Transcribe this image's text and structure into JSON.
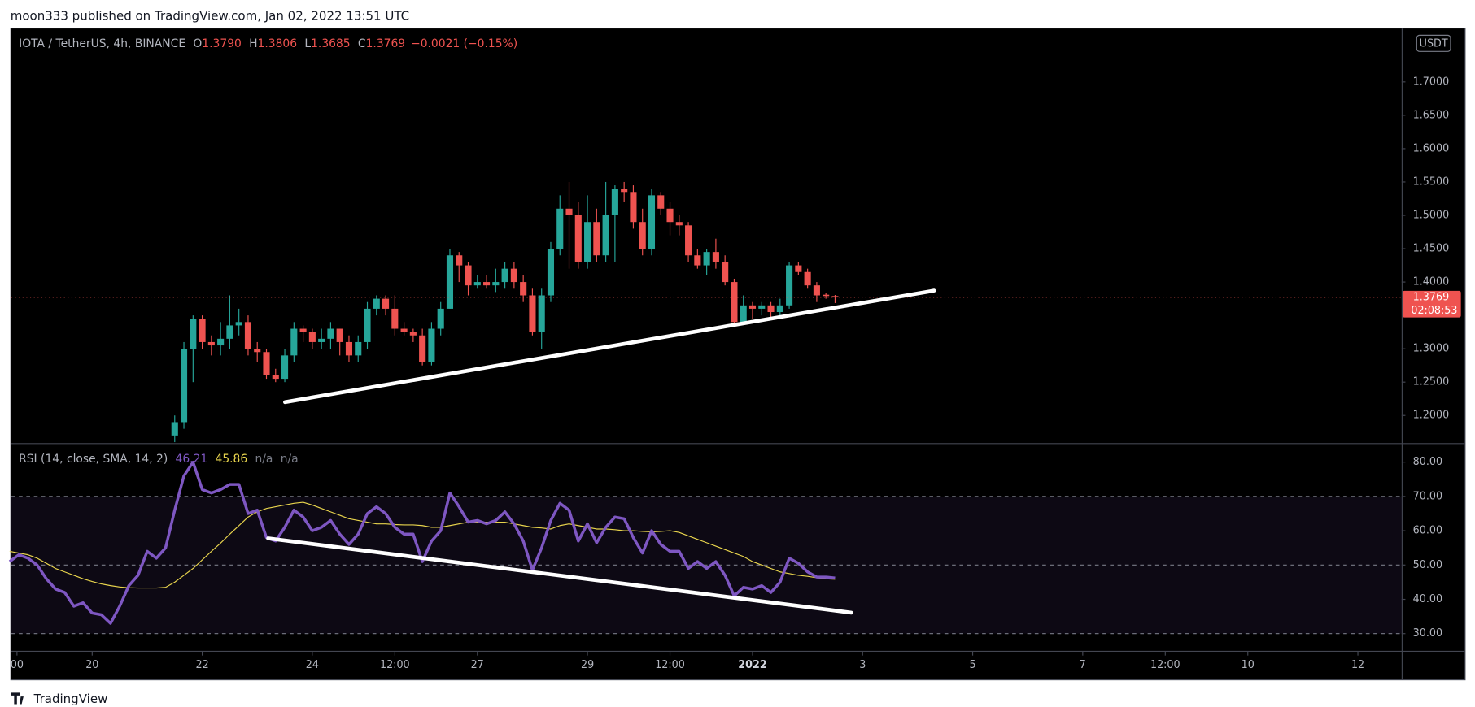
{
  "header": {
    "text": "moon333 published on TradingView.com, Jan 02, 2022 13:51 UTC"
  },
  "footer": {
    "text": "TradingView"
  },
  "chart_data": [
    {
      "type": "candlestick",
      "title": "IOTA / TetherUS, 4h, BINANCE",
      "legend_values": [
        {
          "key": "O",
          "text": "1.3790"
        },
        {
          "key": "H",
          "text": "1.3806"
        },
        {
          "key": "L",
          "text": "1.3685"
        },
        {
          "key": "C",
          "text": "1.3769"
        }
      ],
      "change": "−0.0021 (−0.15%)",
      "currency": "USDT",
      "last_price": {
        "value": 1.3769,
        "label": "1.3769"
      },
      "countdown": "02:08:53",
      "up_color": "#26a69a",
      "down_color": "#ef5350",
      "x": [
        9,
        10,
        11,
        12,
        13,
        14,
        15,
        16,
        17,
        18,
        19,
        20,
        21,
        22,
        23,
        24,
        25,
        26,
        27,
        28,
        29,
        30,
        31,
        32,
        33,
        34,
        35,
        36,
        37,
        38,
        39,
        40,
        41,
        42,
        43,
        44,
        45,
        46,
        47,
        48,
        49,
        50,
        51,
        52,
        53,
        54,
        55,
        56,
        57,
        58,
        59,
        60,
        61,
        62,
        63,
        64,
        65,
        66,
        67,
        68,
        69,
        70,
        71,
        72,
        73,
        74,
        75,
        76,
        77,
        78,
        79,
        80,
        81
      ],
      "open": [
        1.17,
        1.19,
        1.3,
        1.345,
        1.31,
        1.305,
        1.315,
        1.335,
        1.34,
        1.3,
        1.295,
        1.26,
        1.255,
        1.29,
        1.33,
        1.325,
        1.31,
        1.315,
        1.33,
        1.31,
        1.29,
        1.31,
        1.36,
        1.375,
        1.36,
        1.33,
        1.325,
        1.32,
        1.28,
        1.33,
        1.36,
        1.44,
        1.425,
        1.395,
        1.4,
        1.395,
        1.4,
        1.42,
        1.4,
        1.38,
        1.325,
        1.38,
        1.45,
        1.51,
        1.5,
        1.43,
        1.49,
        1.44,
        1.5,
        1.54,
        1.535,
        1.49,
        1.45,
        1.53,
        1.51,
        1.49,
        1.485,
        1.44,
        1.425,
        1.445,
        1.43,
        1.4,
        1.34,
        1.365,
        1.36,
        1.365,
        1.355,
        1.365,
        1.425,
        1.415,
        1.395,
        1.381,
        1.379
      ],
      "high": [
        1.2,
        1.31,
        1.35,
        1.35,
        1.32,
        1.34,
        1.38,
        1.36,
        1.35,
        1.31,
        1.3,
        1.27,
        1.3,
        1.34,
        1.335,
        1.33,
        1.33,
        1.34,
        1.33,
        1.32,
        1.32,
        1.37,
        1.38,
        1.38,
        1.38,
        1.34,
        1.33,
        1.33,
        1.34,
        1.37,
        1.45,
        1.445,
        1.43,
        1.41,
        1.41,
        1.42,
        1.43,
        1.43,
        1.41,
        1.39,
        1.39,
        1.46,
        1.53,
        1.55,
        1.52,
        1.53,
        1.51,
        1.55,
        1.545,
        1.55,
        1.545,
        1.51,
        1.54,
        1.535,
        1.52,
        1.5,
        1.49,
        1.45,
        1.45,
        1.465,
        1.44,
        1.405,
        1.38,
        1.37,
        1.37,
        1.37,
        1.375,
        1.43,
        1.43,
        1.42,
        1.4,
        1.383,
        1.3806
      ],
      "low": [
        1.16,
        1.18,
        1.25,
        1.3,
        1.29,
        1.29,
        1.3,
        1.32,
        1.29,
        1.28,
        1.255,
        1.25,
        1.25,
        1.28,
        1.31,
        1.3,
        1.3,
        1.3,
        1.29,
        1.28,
        1.28,
        1.3,
        1.35,
        1.35,
        1.32,
        1.32,
        1.31,
        1.275,
        1.275,
        1.32,
        1.36,
        1.4,
        1.38,
        1.39,
        1.39,
        1.385,
        1.39,
        1.39,
        1.37,
        1.32,
        1.3,
        1.37,
        1.44,
        1.42,
        1.42,
        1.42,
        1.43,
        1.43,
        1.43,
        1.52,
        1.48,
        1.44,
        1.44,
        1.5,
        1.47,
        1.47,
        1.43,
        1.42,
        1.41,
        1.42,
        1.395,
        1.335,
        1.34,
        1.345,
        1.35,
        1.345,
        1.35,
        1.36,
        1.41,
        1.39,
        1.37,
        1.375,
        1.3685
      ],
      "close": [
        1.19,
        1.3,
        1.345,
        1.31,
        1.305,
        1.315,
        1.335,
        1.34,
        1.3,
        1.295,
        1.26,
        1.255,
        1.29,
        1.33,
        1.325,
        1.31,
        1.315,
        1.33,
        1.31,
        1.29,
        1.31,
        1.36,
        1.375,
        1.36,
        1.33,
        1.325,
        1.32,
        1.28,
        1.33,
        1.36,
        1.44,
        1.425,
        1.395,
        1.4,
        1.395,
        1.4,
        1.42,
        1.4,
        1.38,
        1.325,
        1.38,
        1.45,
        1.51,
        1.5,
        1.43,
        1.49,
        1.44,
        1.5,
        1.54,
        1.535,
        1.49,
        1.45,
        1.53,
        1.51,
        1.49,
        1.485,
        1.44,
        1.425,
        1.445,
        1.43,
        1.4,
        1.34,
        1.365,
        1.36,
        1.365,
        1.355,
        1.365,
        1.425,
        1.415,
        1.395,
        1.38,
        1.379,
        1.3769
      ],
      "xlim": [
        -8.82,
        142.77
      ],
      "ylim": [
        1.1586,
        1.78
      ],
      "yticks": [
        {
          "value": 1.2,
          "label": "1.2000"
        },
        {
          "value": 1.25,
          "label": "1.2500"
        },
        {
          "value": 1.3,
          "label": "1.3000"
        },
        {
          "value": 1.4,
          "label": "1.4000"
        },
        {
          "value": 1.45,
          "label": "1.4500"
        },
        {
          "value": 1.5,
          "label": "1.5000"
        },
        {
          "value": 1.55,
          "label": "1.5500"
        },
        {
          "value": 1.6,
          "label": "1.6000"
        },
        {
          "value": 1.65,
          "label": "1.6500"
        },
        {
          "value": 1.7,
          "label": "1.7000"
        }
      ]
    },
    {
      "type": "line",
      "title": "RSI (14, close, SMA, 14, 2)",
      "na_labels": [
        "n/a",
        "n/a"
      ],
      "x": [
        -9,
        -8,
        -7,
        -6,
        -5,
        -4,
        -3,
        -2,
        -1,
        0,
        1,
        2,
        3,
        4,
        5,
        6,
        7,
        8,
        9,
        10,
        11,
        12,
        13,
        14,
        15,
        16,
        17,
        18,
        19,
        20,
        21,
        22,
        23,
        24,
        25,
        26,
        27,
        28,
        29,
        30,
        31,
        32,
        33,
        34,
        35,
        36,
        37,
        38,
        39,
        40,
        41,
        42,
        43,
        44,
        45,
        46,
        47,
        48,
        49,
        50,
        51,
        52,
        53,
        54,
        55,
        56,
        57,
        58,
        59,
        60,
        61,
        62,
        63,
        64,
        65,
        66,
        67,
        68,
        69,
        70,
        71,
        72,
        73,
        74,
        75,
        76,
        77,
        78,
        79,
        80,
        81
      ],
      "series": [
        {
          "color": "#7e57c2",
          "width": 3,
          "last_label": "46.21",
          "values": [
            51,
            53,
            52,
            50,
            46,
            43,
            42,
            38,
            39,
            36,
            35.5,
            33,
            38,
            44,
            47,
            54,
            52,
            55,
            66,
            76,
            80,
            72,
            71,
            72,
            73.5,
            73.5,
            65,
            66,
            58,
            57,
            61,
            66,
            64,
            60,
            61,
            63,
            59,
            56,
            59,
            65,
            67,
            65,
            61,
            59,
            59,
            51,
            57,
            60,
            71,
            67,
            62.5,
            63,
            62,
            63,
            65.5,
            62,
            57,
            48.5,
            55,
            63,
            68,
            66,
            57,
            62,
            56.5,
            61,
            64,
            63.5,
            58,
            53.5,
            60,
            56,
            54,
            54,
            49,
            51,
            49,
            51,
            47,
            41,
            43.5,
            43,
            44,
            42,
            45,
            52,
            50.5,
            48,
            46.5,
            46.5,
            46.21
          ]
        },
        {
          "color": "#e8d44d",
          "width": 1,
          "last_label": "45.86",
          "values": [
            54,
            53.5,
            53,
            52,
            50.5,
            49,
            48,
            47,
            46,
            45.2,
            44.5,
            44,
            43.6,
            43.4,
            43.3,
            43.3,
            43.3,
            43.5,
            45,
            47,
            49,
            51.5,
            54,
            56.4,
            59,
            61.5,
            64,
            65.5,
            66.5,
            67,
            67.5,
            68,
            68.3,
            67.5,
            66.5,
            65.5,
            64.5,
            63.5,
            63,
            62.5,
            62,
            62,
            61.8,
            61.7,
            61.7,
            61.5,
            61,
            61,
            61.5,
            62,
            62.5,
            62.5,
            62.5,
            62.5,
            62.5,
            62,
            61.5,
            61,
            60.8,
            60.5,
            61.5,
            62,
            61.5,
            61,
            60.5,
            60.5,
            60.3,
            60,
            60,
            59.8,
            59.7,
            59.8,
            60,
            59.5,
            58.5,
            57.5,
            56.5,
            55.5,
            54.5,
            53.5,
            52.5,
            51,
            50,
            49,
            48,
            47.5,
            47,
            46.7,
            46.3,
            46,
            45.86
          ]
        }
      ],
      "band": [
        30,
        70
      ],
      "midline": 50,
      "xlim": [
        -8.82,
        142.77
      ],
      "ylim": [
        25,
        85.28
      ],
      "yticks": [
        {
          "value": 30,
          "label": "30.00"
        },
        {
          "value": 40,
          "label": "40.00"
        },
        {
          "value": 50,
          "label": "50.00"
        },
        {
          "value": 60,
          "label": "60.00"
        },
        {
          "value": 70,
          "label": "70.00"
        },
        {
          "value": 80,
          "label": "80.00"
        }
      ],
      "xticks": [
        {
          "value": -8.2,
          "label": "00"
        },
        {
          "value": 0,
          "label": "20"
        },
        {
          "value": 12,
          "label": "22"
        },
        {
          "value": 24,
          "label": "24"
        },
        {
          "value": 33,
          "label": "12:00"
        },
        {
          "value": 42,
          "label": "27"
        },
        {
          "value": 54,
          "label": "29"
        },
        {
          "value": 63,
          "label": "12:00"
        },
        {
          "value": 72,
          "label": "2022"
        },
        {
          "value": 84,
          "label": "3"
        },
        {
          "value": 96,
          "label": "5"
        },
        {
          "value": 108,
          "label": "7"
        },
        {
          "value": 117,
          "label": "12:00"
        },
        {
          "value": 126,
          "label": "10"
        },
        {
          "value": 138,
          "label": "12"
        }
      ]
    }
  ]
}
